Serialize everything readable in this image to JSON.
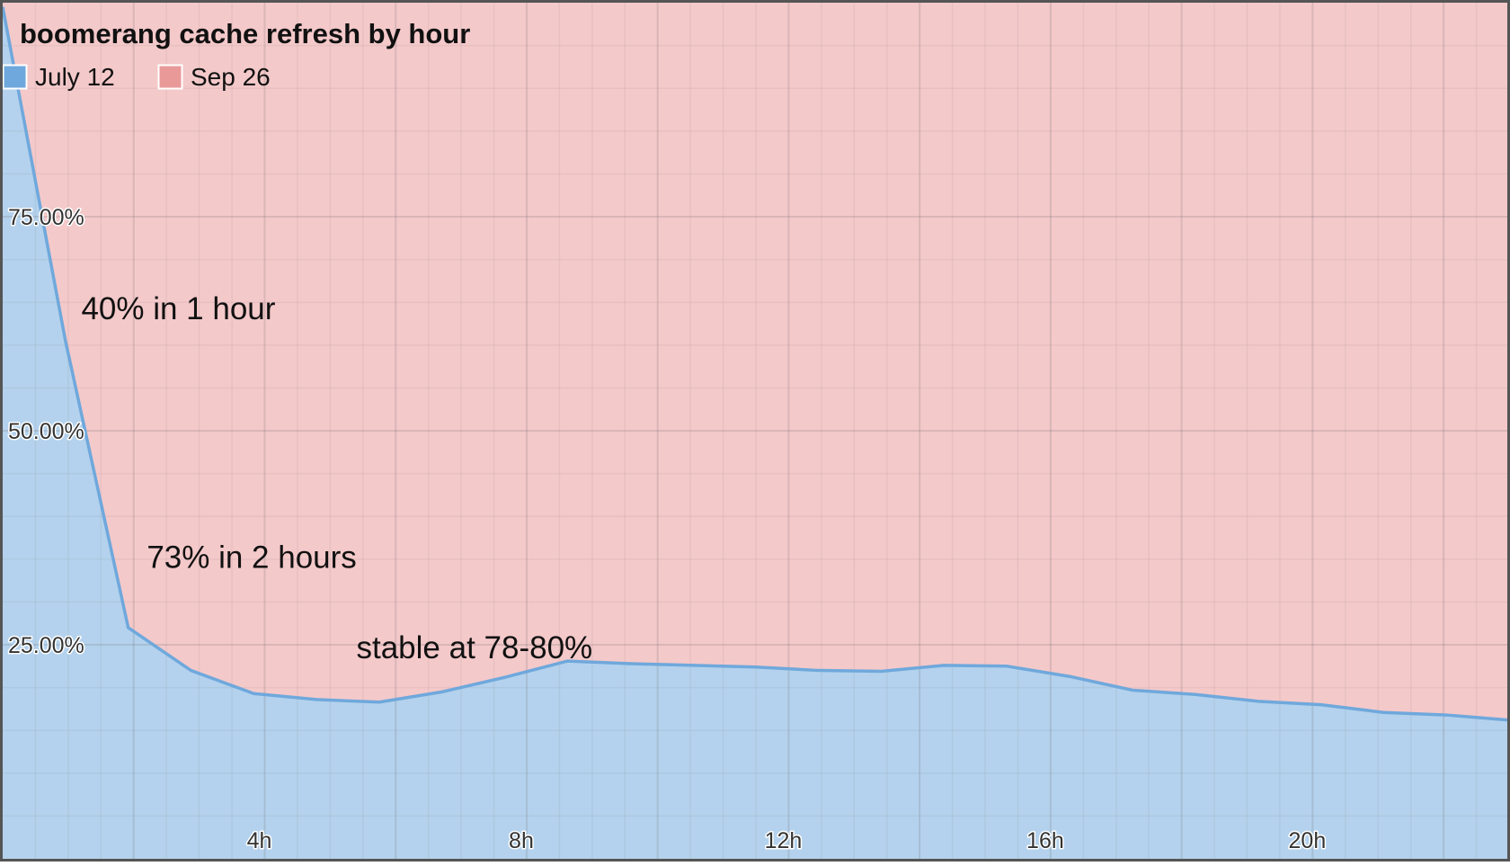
{
  "chart_data": {
    "type": "area",
    "title": "boomerang cache refresh by hour",
    "xlabel": "",
    "ylabel": "",
    "x_range": [
      0,
      23
    ],
    "ylim": [
      0,
      100
    ],
    "x_ticks": [
      {
        "x": 4,
        "label": "4h"
      },
      {
        "x": 8,
        "label": "8h"
      },
      {
        "x": 12,
        "label": "12h"
      },
      {
        "x": 16,
        "label": "16h"
      },
      {
        "x": 20,
        "label": "20h"
      }
    ],
    "y_ticks": [
      {
        "y": 25,
        "label": "25.00%"
      },
      {
        "y": 50,
        "label": "50.00%"
      },
      {
        "y": 75,
        "label": "75.00%"
      }
    ],
    "grid": true,
    "stacked_percent": true,
    "legend_position": "top-left",
    "series": [
      {
        "name": "July 12",
        "color": "#6fa8dc",
        "fill": "#b4d2ed",
        "values": [
          99.5,
          60.5,
          27.0,
          22.0,
          19.3,
          18.6,
          18.3,
          19.5,
          21.2,
          23.1,
          22.8,
          22.6,
          22.4,
          22.0,
          21.9,
          22.6,
          22.5,
          21.3,
          19.7,
          19.2,
          18.4,
          18.0,
          17.1,
          16.8,
          16.2
        ]
      },
      {
        "name": "Sep 26",
        "color": "#ea9999",
        "fill": "#f4c9ca",
        "values": [
          0.5,
          39.5,
          73.0,
          78.0,
          80.7,
          81.4,
          81.7,
          80.5,
          78.8,
          76.9,
          77.2,
          77.4,
          77.6,
          78.0,
          78.1,
          77.4,
          77.5,
          78.7,
          80.3,
          80.8,
          81.6,
          82.0,
          82.9,
          83.2,
          83.8
        ]
      }
    ],
    "annotations": [
      {
        "text": "40% in 1 hour",
        "x": 1.2,
        "y": 63
      },
      {
        "text": "73% in 2 hours",
        "x": 2.2,
        "y": 34
      },
      {
        "text": "stable at 78-80%",
        "x": 5.4,
        "y": 23.4
      }
    ]
  }
}
